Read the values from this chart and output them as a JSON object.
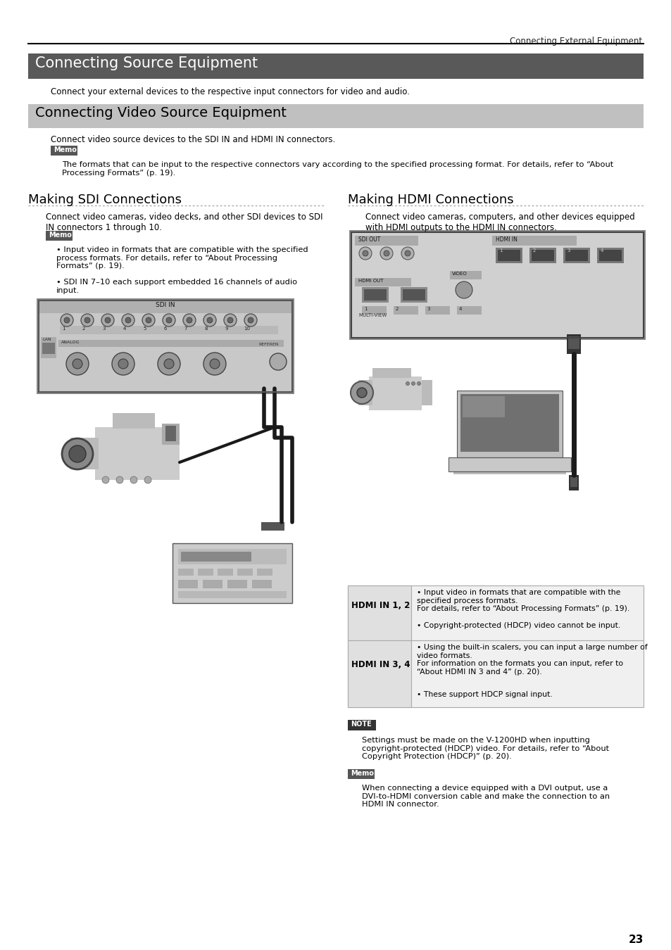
{
  "page_header_text": "Connecting External Equipment",
  "section1_title": "Connecting Source Equipment",
  "section1_body": "Connect your external devices to the respective input connectors for video and audio.",
  "section2_title": "Connecting Video Source Equipment",
  "section2_body": "Connect video source devices to the SDI IN and HDMI IN connectors.",
  "section2_memo": "The formats that can be input to the respective connectors vary according to the specified processing format. For details, refer to “About\nProcessing Formats” (p. 19).",
  "sdi_heading": "Making SDI Connections",
  "sdi_body": "Connect video cameras, video decks, and other SDI devices to SDI\nIN connectors 1 through 10.",
  "sdi_memo_bullet1": "Input video in formats that are compatible with the specified\nprocess formats. For details, refer to “About Processing\nFormats” (p. 19).",
  "sdi_memo_bullet2": "SDI IN 7–10 each support embedded 16 channels of audio\ninput.",
  "hdmi_heading": "Making HDMI Connections",
  "hdmi_body": "Connect video cameras, computers, and other devices equipped\nwith HDMI outputs to the HDMI IN connectors.",
  "hdmi_row1_label": "HDMI IN 1, 2",
  "hdmi_row1_b1": "Input video in formats that are compatible with the\nspecified process formats.\nFor details, refer to “About Processing Formats” (p. 19).",
  "hdmi_row1_b2": "Copyright-protected (HDCP) video cannot be input.",
  "hdmi_row2_label": "HDMI IN 3, 4",
  "hdmi_row2_b1": "Using the built-in scalers, you can input a large number of\nvideo formats.\nFor information on the formats you can input, refer to\n“About HDMI IN 3 and 4” (p. 20).",
  "hdmi_row2_b2": "These support HDCP signal input.",
  "note_label": "NOTE",
  "note_text": "Settings must be made on the V-1200HD when inputting\ncopyright-protected (HDCP) video. For details, refer to “About\nCopyright Protection (HDCP)” (p. 20).",
  "memo2_text": "When connecting a device equipped with a DVI output, use a\nDVI-to-HDMI conversion cable and make the connection to an\nHDMI IN connector.",
  "page_number": "23",
  "bg_color": "#ffffff",
  "section1_bg": "#595959",
  "section1_fg": "#ffffff",
  "section2_bg": "#c0c0c0",
  "section2_fg": "#000000",
  "memo_bg": "#555555",
  "memo_fg": "#ffffff",
  "note_bg": "#333333",
  "note_fg": "#ffffff",
  "body_color": "#000000",
  "dot_color": "#999999",
  "table_bg1": "#e0e0e0",
  "table_border": "#aaaaaa"
}
